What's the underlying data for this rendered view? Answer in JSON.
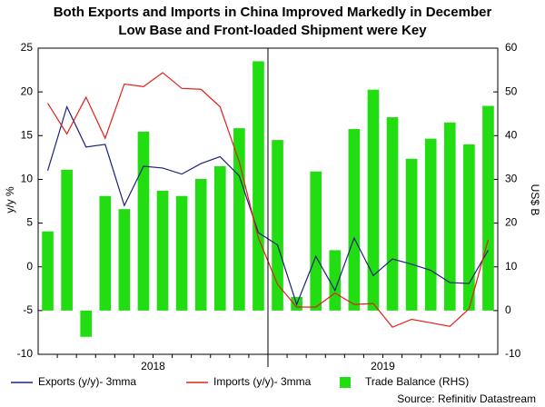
{
  "chart_data": {
    "type": "bar-line",
    "title": "Both Exports and Imports in China Improved Markedly in December",
    "subtitle": "Low Base and Front-loaded Shipment were Key",
    "ylabel": "y/y %",
    "y2label": "US$ B",
    "year_labels": [
      "2018",
      "2019"
    ],
    "ylim": [
      -10,
      25
    ],
    "yticks": [
      -10,
      -5,
      0,
      5,
      10,
      15,
      20,
      25
    ],
    "y2lim": [
      -10,
      60
    ],
    "y2ticks": [
      -10,
      0,
      10,
      20,
      30,
      40,
      50,
      60
    ],
    "series": [
      {
        "name": "Exports (y/y)- 3mma",
        "type": "line",
        "color": "#1a237e",
        "values": [
          11,
          18.3,
          13.7,
          14,
          7,
          11.5,
          11.3,
          10.6,
          11.8,
          12.6,
          10.4,
          3.9,
          2.5,
          -4.3,
          1.2,
          -2.7,
          3.3,
          -1,
          0.9,
          0.3,
          -0.4,
          -1.8,
          -1.9,
          1.9
        ]
      },
      {
        "name": "Imports (y/y)- 3mma",
        "type": "line",
        "color": "#e0201b",
        "values": [
          18.7,
          15.2,
          19.4,
          14.7,
          20.9,
          20.6,
          22.2,
          20.4,
          20.3,
          18.3,
          12,
          3.3,
          -2,
          -4.6,
          -4.6,
          -3,
          -4.3,
          -4.2,
          -6.9,
          -6,
          -6.4,
          -6.8,
          -4.8,
          3.1
        ]
      },
      {
        "name": "Trade Balance (RHS)",
        "type": "bar",
        "axis": "y2",
        "color": "#22dd11",
        "values": [
          18.1,
          32.2,
          -6,
          26.2,
          23.2,
          40.9,
          27.4,
          26.2,
          30.1,
          33,
          41.7,
          57,
          39,
          3.1,
          31.8,
          13.8,
          41.5,
          50.5,
          44.2,
          34.7,
          39.3,
          43,
          38,
          46.8
        ]
      }
    ],
    "source": "Source: Refinitiv Datastream"
  }
}
